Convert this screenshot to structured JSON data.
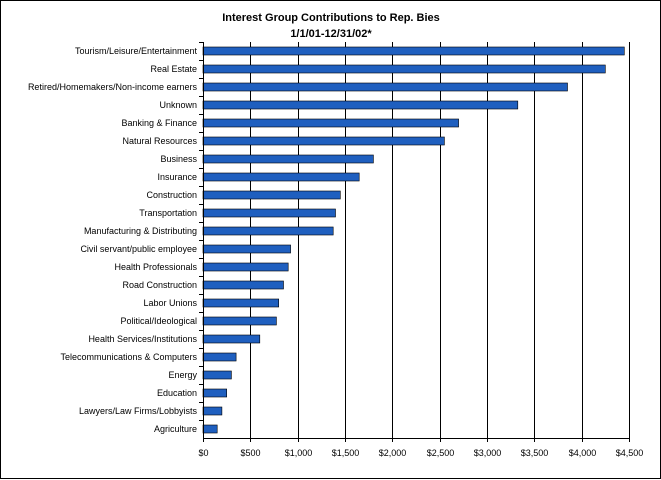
{
  "chart_data": {
    "type": "bar",
    "orientation": "horizontal",
    "title": "Interest Group Contributions to Rep. Bies",
    "subtitle": "1/1/01-12/31/02*",
    "xlabel": "",
    "ylabel": "",
    "xlim": [
      0,
      4500
    ],
    "x_ticks": [
      0,
      500,
      1000,
      1500,
      2000,
      2500,
      3000,
      3500,
      4000,
      4500
    ],
    "x_tick_labels": [
      "$0",
      "$500",
      "$1,000",
      "$1,500",
      "$2,000",
      "$2,500",
      "$3,000",
      "$3,500",
      "$4,000",
      "$4,500"
    ],
    "grid": "vertical",
    "legend": "none",
    "bar_color": "#1f5fbf",
    "categories": [
      "Tourism/Leisure/Entertainment",
      "Real Estate",
      "Retired/Homemakers/Non-income earners",
      "Unknown",
      "Banking & Finance",
      "Natural Resources",
      "Business",
      "Insurance",
      "Construction",
      "Transportation",
      "Manufacturing & Distributing",
      "Civil servant/public employee",
      "Health Professionals",
      "Road Construction",
      "Labor Unions",
      "Political/Ideological",
      "Health Services/Institutions",
      "Telecommunications & Computers",
      "Energy",
      "Education",
      "Lawyers/Law Firms/Lobbyists",
      "Agriculture"
    ],
    "values": [
      4450,
      4250,
      3850,
      3325,
      2700,
      2550,
      1800,
      1650,
      1450,
      1400,
      1375,
      925,
      900,
      850,
      800,
      775,
      600,
      350,
      300,
      250,
      200,
      150
    ]
  }
}
